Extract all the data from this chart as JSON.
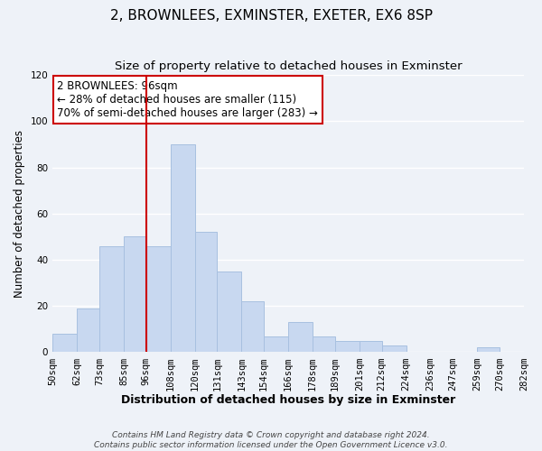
{
  "title": "2, BROWNLEES, EXMINSTER, EXETER, EX6 8SP",
  "subtitle": "Size of property relative to detached houses in Exminster",
  "xlabel": "Distribution of detached houses by size in Exminster",
  "ylabel": "Number of detached properties",
  "bar_color": "#c8d8f0",
  "bar_edge_color": "#a8c0e0",
  "bins": [
    50,
    62,
    73,
    85,
    96,
    108,
    120,
    131,
    143,
    154,
    166,
    178,
    189,
    201,
    212,
    224,
    236,
    247,
    259,
    270,
    282
  ],
  "counts": [
    8,
    19,
    46,
    50,
    46,
    90,
    52,
    35,
    22,
    7,
    13,
    7,
    5,
    5,
    3,
    0,
    0,
    0,
    2,
    0
  ],
  "tick_labels": [
    "50sqm",
    "62sqm",
    "73sqm",
    "85sqm",
    "96sqm",
    "108sqm",
    "120sqm",
    "131sqm",
    "143sqm",
    "154sqm",
    "166sqm",
    "178sqm",
    "189sqm",
    "201sqm",
    "212sqm",
    "224sqm",
    "236sqm",
    "247sqm",
    "259sqm",
    "270sqm",
    "282sqm"
  ],
  "vline_x": 96,
  "vline_color": "#cc0000",
  "annotation_line1": "2 BROWNLEES: 96sqm",
  "annotation_line2": "← 28% of detached houses are smaller (115)",
  "annotation_line3": "70% of semi-detached houses are larger (283) →",
  "annotation_box_color": "#ffffff",
  "annotation_box_edge_color": "#cc0000",
  "ylim": [
    0,
    120
  ],
  "yticks": [
    0,
    20,
    40,
    60,
    80,
    100,
    120
  ],
  "footer_line1": "Contains HM Land Registry data © Crown copyright and database right 2024.",
  "footer_line2": "Contains public sector information licensed under the Open Government Licence v3.0.",
  "background_color": "#eef2f8",
  "grid_color": "#ffffff",
  "title_fontsize": 11,
  "subtitle_fontsize": 9.5,
  "xlabel_fontsize": 9,
  "ylabel_fontsize": 8.5,
  "tick_fontsize": 7.5,
  "annotation_fontsize": 8.5,
  "footer_fontsize": 6.5
}
